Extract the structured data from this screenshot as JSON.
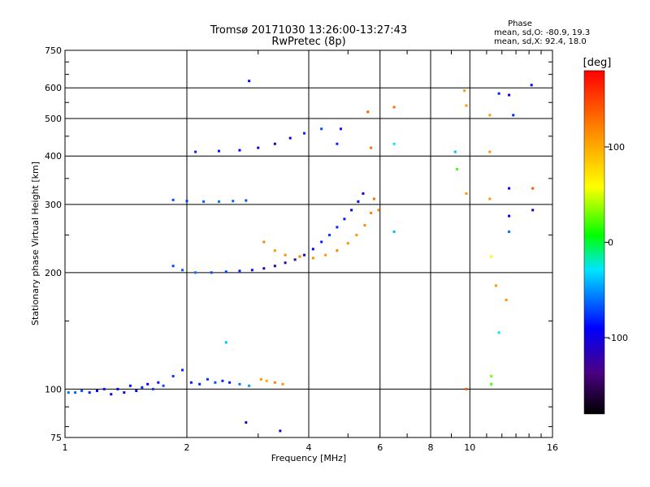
{
  "chart_data": {
    "type": "scatter",
    "title": "Tromsø 20171030 13:26:00-13:27:43",
    "subtitle": "RwPretec (8p)",
    "xlabel": "Frequency [MHz]",
    "ylabel": "Stationary phase Virtual Height [km]",
    "x_scale": "log",
    "y_scale": "log",
    "xlim": [
      1,
      16
    ],
    "ylim": [
      75,
      750
    ],
    "x_ticks": [
      1,
      2,
      4,
      6,
      8,
      10,
      16
    ],
    "x_tick_labels": [
      "1",
      "2",
      "4",
      "6",
      "8",
      "10",
      "16"
    ],
    "y_ticks": [
      75,
      100,
      200,
      300,
      400,
      500,
      600,
      750
    ],
    "y_tick_labels": [
      "75",
      "100",
      "200",
      "300",
      "400",
      "500",
      "600",
      "750"
    ],
    "grid": true,
    "phase_info": {
      "heading": "Phase",
      "line_o": "mean, sd,O: -80.9, 19.3",
      "line_x": "mean, sd,X:  92.4, 18.0"
    },
    "colorbar": {
      "label": "[deg]",
      "range": [
        -180,
        180
      ],
      "ticks": [
        100,
        0,
        -100
      ],
      "tick_labels": [
        "100",
        "0",
        "-100"
      ]
    },
    "series": [
      {
        "points": [
          {
            "x": 1.02,
            "y": 98,
            "phase": -60
          },
          {
            "x": 1.06,
            "y": 98,
            "phase": -65
          },
          {
            "x": 1.1,
            "y": 99,
            "phase": -70
          },
          {
            "x": 1.15,
            "y": 98,
            "phase": -80
          },
          {
            "x": 1.2,
            "y": 99,
            "phase": -90
          },
          {
            "x": 1.25,
            "y": 100,
            "phase": -85
          },
          {
            "x": 1.3,
            "y": 97,
            "phase": -95
          },
          {
            "x": 1.35,
            "y": 100,
            "phase": -90
          },
          {
            "x": 1.4,
            "y": 98,
            "phase": -100
          },
          {
            "x": 1.45,
            "y": 102,
            "phase": -85
          },
          {
            "x": 1.5,
            "y": 99,
            "phase": -95
          },
          {
            "x": 1.55,
            "y": 101,
            "phase": -80
          },
          {
            "x": 1.6,
            "y": 103,
            "phase": -90
          },
          {
            "x": 1.65,
            "y": 100,
            "phase": -75
          },
          {
            "x": 1.7,
            "y": 104,
            "phase": -85
          },
          {
            "x": 1.75,
            "y": 102,
            "phase": -70
          },
          {
            "x": 1.85,
            "y": 108,
            "phase": -75
          },
          {
            "x": 1.95,
            "y": 112,
            "phase": -80
          },
          {
            "x": 2.05,
            "y": 104,
            "phase": -85
          },
          {
            "x": 2.15,
            "y": 103,
            "phase": -80
          },
          {
            "x": 2.25,
            "y": 106,
            "phase": -75
          },
          {
            "x": 2.35,
            "y": 104,
            "phase": -70
          },
          {
            "x": 2.45,
            "y": 105,
            "phase": -80
          },
          {
            "x": 2.55,
            "y": 104,
            "phase": -85
          },
          {
            "x": 2.7,
            "y": 103,
            "phase": -60
          },
          {
            "x": 2.85,
            "y": 102,
            "phase": -50
          },
          {
            "x": 3.05,
            "y": 106,
            "phase": 110
          },
          {
            "x": 3.15,
            "y": 105,
            "phase": 100
          },
          {
            "x": 3.3,
            "y": 104,
            "phase": 120
          },
          {
            "x": 3.45,
            "y": 103,
            "phase": 110
          },
          {
            "x": 2.5,
            "y": 132,
            "phase": -40
          },
          {
            "x": 1.85,
            "y": 208,
            "phase": -70
          },
          {
            "x": 1.95,
            "y": 203,
            "phase": -65
          },
          {
            "x": 2.1,
            "y": 200,
            "phase": -60
          },
          {
            "x": 2.3,
            "y": 200,
            "phase": -70
          },
          {
            "x": 2.5,
            "y": 201,
            "phase": -75
          },
          {
            "x": 2.7,
            "y": 202,
            "phase": -80
          },
          {
            "x": 2.9,
            "y": 203,
            "phase": -85
          },
          {
            "x": 3.1,
            "y": 205,
            "phase": -110
          },
          {
            "x": 3.3,
            "y": 208,
            "phase": -120
          },
          {
            "x": 3.5,
            "y": 212,
            "phase": -125
          },
          {
            "x": 3.7,
            "y": 216,
            "phase": -120
          },
          {
            "x": 3.9,
            "y": 222,
            "phase": -110
          },
          {
            "x": 4.1,
            "y": 230,
            "phase": -90
          },
          {
            "x": 4.3,
            "y": 240,
            "phase": -80
          },
          {
            "x": 4.5,
            "y": 250,
            "phase": -75
          },
          {
            "x": 4.7,
            "y": 262,
            "phase": -80
          },
          {
            "x": 4.9,
            "y": 275,
            "phase": -85
          },
          {
            "x": 5.1,
            "y": 290,
            "phase": -90
          },
          {
            "x": 5.3,
            "y": 305,
            "phase": -95
          },
          {
            "x": 5.45,
            "y": 320,
            "phase": -100
          },
          {
            "x": 3.1,
            "y": 240,
            "phase": 120
          },
          {
            "x": 3.3,
            "y": 228,
            "phase": 110
          },
          {
            "x": 3.5,
            "y": 222,
            "phase": 115
          },
          {
            "x": 3.8,
            "y": 220,
            "phase": 120
          },
          {
            "x": 4.1,
            "y": 218,
            "phase": 115
          },
          {
            "x": 4.4,
            "y": 222,
            "phase": 110
          },
          {
            "x": 4.7,
            "y": 228,
            "phase": 120
          },
          {
            "x": 5.0,
            "y": 238,
            "phase": 115
          },
          {
            "x": 5.25,
            "y": 250,
            "phase": 110
          },
          {
            "x": 5.5,
            "y": 265,
            "phase": 115
          },
          {
            "x": 5.7,
            "y": 285,
            "phase": 120
          },
          {
            "x": 5.8,
            "y": 310,
            "phase": 130
          },
          {
            "x": 5.7,
            "y": 420,
            "phase": 130
          },
          {
            "x": 5.6,
            "y": 520,
            "phase": 140
          },
          {
            "x": 1.85,
            "y": 308,
            "phase": -70
          },
          {
            "x": 2.0,
            "y": 306,
            "phase": -75
          },
          {
            "x": 2.2,
            "y": 305,
            "phase": -65
          },
          {
            "x": 2.4,
            "y": 305,
            "phase": -60
          },
          {
            "x": 2.6,
            "y": 306,
            "phase": -65
          },
          {
            "x": 2.8,
            "y": 307,
            "phase": -70
          },
          {
            "x": 2.1,
            "y": 410,
            "phase": -80
          },
          {
            "x": 2.4,
            "y": 412,
            "phase": -85
          },
          {
            "x": 2.7,
            "y": 414,
            "phase": -90
          },
          {
            "x": 3.0,
            "y": 420,
            "phase": -100
          },
          {
            "x": 3.3,
            "y": 430,
            "phase": -110
          },
          {
            "x": 3.6,
            "y": 445,
            "phase": -95
          },
          {
            "x": 3.9,
            "y": 458,
            "phase": -80
          },
          {
            "x": 4.3,
            "y": 470,
            "phase": -70
          },
          {
            "x": 2.85,
            "y": 625,
            "phase": -90
          },
          {
            "x": 4.7,
            "y": 430,
            "phase": -80
          },
          {
            "x": 4.8,
            "y": 470,
            "phase": -85
          },
          {
            "x": 6.5,
            "y": 535,
            "phase": 130
          },
          {
            "x": 6.5,
            "y": 430,
            "phase": -30
          },
          {
            "x": 6.5,
            "y": 255,
            "phase": -40
          },
          {
            "x": 5.95,
            "y": 290,
            "phase": 120
          },
          {
            "x": 9.2,
            "y": 410,
            "phase": -40
          },
          {
            "x": 9.3,
            "y": 370,
            "phase": 20
          },
          {
            "x": 9.7,
            "y": 590,
            "phase": 110
          },
          {
            "x": 9.8,
            "y": 540,
            "phase": 110
          },
          {
            "x": 9.8,
            "y": 320,
            "phase": 110
          },
          {
            "x": 9.8,
            "y": 100,
            "phase": 140
          },
          {
            "x": 11.2,
            "y": 510,
            "phase": 110
          },
          {
            "x": 11.2,
            "y": 410,
            "phase": 110
          },
          {
            "x": 11.2,
            "y": 310,
            "phase": 110
          },
          {
            "x": 11.3,
            "y": 220,
            "phase": 60
          },
          {
            "x": 11.3,
            "y": 108,
            "phase": 30
          },
          {
            "x": 11.3,
            "y": 103,
            "phase": 20
          },
          {
            "x": 11.6,
            "y": 185,
            "phase": 110
          },
          {
            "x": 11.8,
            "y": 580,
            "phase": -80
          },
          {
            "x": 12.3,
            "y": 170,
            "phase": 110
          },
          {
            "x": 11.8,
            "y": 140,
            "phase": -30
          },
          {
            "x": 12.5,
            "y": 575,
            "phase": -100
          },
          {
            "x": 12.5,
            "y": 330,
            "phase": -100
          },
          {
            "x": 12.5,
            "y": 280,
            "phase": -90
          },
          {
            "x": 12.5,
            "y": 255,
            "phase": -60
          },
          {
            "x": 12.8,
            "y": 510,
            "phase": -80
          },
          {
            "x": 14.2,
            "y": 610,
            "phase": -90
          },
          {
            "x": 14.3,
            "y": 330,
            "phase": 140
          },
          {
            "x": 14.3,
            "y": 290,
            "phase": -100
          },
          {
            "x": 3.4,
            "y": 78,
            "phase": -100
          },
          {
            "x": 2.8,
            "y": 82,
            "phase": -110
          }
        ]
      }
    ]
  }
}
